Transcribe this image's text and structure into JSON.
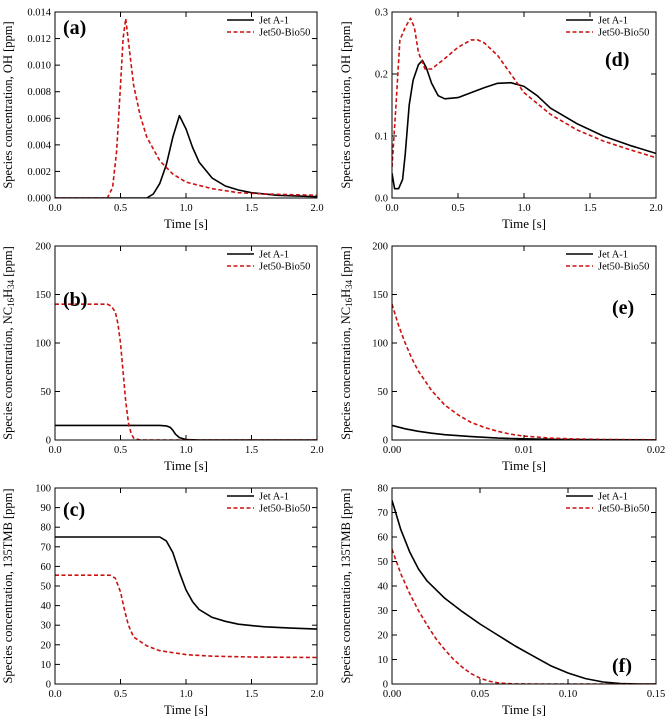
{
  "chart_data": [
    {
      "type": "line",
      "panel_label": "(a)",
      "xlabel": "Time [s]",
      "ylabel_parts": [
        {
          "text": "Species concentration, OH [ppm]"
        }
      ],
      "xlim": [
        0,
        2.0
      ],
      "ylim": [
        0,
        0.014
      ],
      "xticks": [
        {
          "v": 0,
          "label": "0.0"
        },
        {
          "v": 0.5,
          "label": "0.5"
        },
        {
          "v": 1.0,
          "label": "1.0"
        },
        {
          "v": 1.5,
          "label": "1.5"
        },
        {
          "v": 2.0,
          "label": "2.0"
        }
      ],
      "yticks": [
        {
          "v": 0,
          "label": "0.000"
        },
        {
          "v": 0.002,
          "label": "0.002"
        },
        {
          "v": 0.004,
          "label": "0.004"
        },
        {
          "v": 0.006,
          "label": "0.006"
        },
        {
          "v": 0.008,
          "label": "0.008"
        },
        {
          "v": 0.01,
          "label": "0.010"
        },
        {
          "v": 0.012,
          "label": "0.012"
        },
        {
          "v": 0.014,
          "label": "0.014"
        }
      ],
      "series": [
        {
          "name": "Jet A-1",
          "color": "#000000",
          "dash": "solid",
          "x": [
            0,
            0.7,
            0.75,
            0.8,
            0.85,
            0.9,
            0.95,
            1.0,
            1.05,
            1.1,
            1.2,
            1.3,
            1.4,
            1.5,
            1.7,
            2.0
          ],
          "y": [
            0,
            0,
            0.0003,
            0.0011,
            0.0025,
            0.0046,
            0.0062,
            0.0052,
            0.0038,
            0.0027,
            0.0015,
            0.0009,
            0.0006,
            0.0004,
            0.0002,
            0.0001
          ]
        },
        {
          "name": "Jet50-Bio50",
          "color": "#cc1111",
          "dash": "dashed",
          "x": [
            0,
            0.4,
            0.44,
            0.47,
            0.5,
            0.52,
            0.54,
            0.56,
            0.6,
            0.65,
            0.7,
            0.8,
            0.9,
            1.0,
            1.2,
            1.4,
            1.6,
            2.0
          ],
          "y": [
            0,
            0,
            0.0008,
            0.0035,
            0.0085,
            0.012,
            0.0135,
            0.0118,
            0.0085,
            0.0062,
            0.0046,
            0.0028,
            0.0018,
            0.0012,
            0.0007,
            0.0004,
            0.0003,
            0.0002
          ]
        }
      ]
    },
    {
      "type": "line",
      "panel_label": "(b)",
      "xlabel": "Time [s]",
      "ylabel_parts": [
        {
          "text": "Species concentration, NC"
        },
        {
          "text": "16",
          "sub": true
        },
        {
          "text": "H"
        },
        {
          "text": "34",
          "sub": true
        },
        {
          "text": " [ppm]"
        }
      ],
      "xlim": [
        0,
        2.0
      ],
      "ylim": [
        0,
        200
      ],
      "xticks": [
        {
          "v": 0,
          "label": "0.0"
        },
        {
          "v": 0.5,
          "label": "0.5"
        },
        {
          "v": 1.0,
          "label": "1.0"
        },
        {
          "v": 1.5,
          "label": "1.5"
        },
        {
          "v": 2.0,
          "label": "2.0"
        }
      ],
      "yticks": [
        {
          "v": 0,
          "label": "0"
        },
        {
          "v": 50,
          "label": "50"
        },
        {
          "v": 100,
          "label": "100"
        },
        {
          "v": 150,
          "label": "150"
        },
        {
          "v": 200,
          "label": "200"
        }
      ],
      "series": [
        {
          "name": "Jet A-1",
          "color": "#000000",
          "dash": "solid",
          "x": [
            0,
            0.8,
            0.85,
            0.88,
            0.9,
            0.92,
            0.95,
            1.0,
            1.1,
            2.0
          ],
          "y": [
            15,
            15,
            14.5,
            13,
            10,
            6,
            2.5,
            0.5,
            0,
            0
          ]
        },
        {
          "name": "Jet50-Bio50",
          "color": "#cc1111",
          "dash": "dashed",
          "x": [
            0,
            0.4,
            0.43,
            0.46,
            0.48,
            0.5,
            0.52,
            0.54,
            0.56,
            0.58,
            0.6,
            0.65,
            2.0
          ],
          "y": [
            140,
            140,
            138,
            132,
            120,
            100,
            70,
            40,
            18,
            7,
            2,
            0,
            0
          ]
        }
      ]
    },
    {
      "type": "line",
      "panel_label": "(c)",
      "xlabel": "Time [s]",
      "ylabel_parts": [
        {
          "text": "Species concentration, 135TMB [ppm]"
        }
      ],
      "xlim": [
        0,
        2.0
      ],
      "ylim": [
        0,
        100
      ],
      "xticks": [
        {
          "v": 0,
          "label": "0.0"
        },
        {
          "v": 0.5,
          "label": "0.5"
        },
        {
          "v": 1.0,
          "label": "1.0"
        },
        {
          "v": 1.5,
          "label": "1.5"
        },
        {
          "v": 2.0,
          "label": "2.0"
        }
      ],
      "yticks": [
        {
          "v": 0,
          "label": "0"
        },
        {
          "v": 10,
          "label": "10"
        },
        {
          "v": 20,
          "label": "20"
        },
        {
          "v": 30,
          "label": "30"
        },
        {
          "v": 40,
          "label": "40"
        },
        {
          "v": 50,
          "label": "50"
        },
        {
          "v": 60,
          "label": "60"
        },
        {
          "v": 70,
          "label": "70"
        },
        {
          "v": 80,
          "label": "80"
        },
        {
          "v": 90,
          "label": "90"
        },
        {
          "v": 100,
          "label": "100"
        }
      ],
      "series": [
        {
          "name": "Jet A-1",
          "color": "#000000",
          "dash": "solid",
          "x": [
            0,
            0.8,
            0.85,
            0.9,
            0.95,
            1.0,
            1.05,
            1.1,
            1.2,
            1.3,
            1.4,
            1.5,
            1.6,
            1.8,
            2.0
          ],
          "y": [
            75,
            75,
            73,
            67,
            57,
            48,
            42,
            38,
            34,
            32,
            30.5,
            29.8,
            29.2,
            28.5,
            28
          ]
        },
        {
          "name": "Jet50-Bio50",
          "color": "#cc1111",
          "dash": "dashed",
          "x": [
            0,
            0.42,
            0.46,
            0.5,
            0.53,
            0.56,
            0.6,
            0.7,
            0.8,
            1.0,
            1.2,
            1.5,
            2.0
          ],
          "y": [
            55.5,
            55.5,
            54,
            47,
            38,
            30,
            24,
            19.5,
            17,
            15,
            14.2,
            13.8,
            13.5
          ]
        }
      ]
    },
    {
      "type": "line",
      "panel_label": "(d)",
      "xlabel": "Time [s]",
      "ylabel_parts": [
        {
          "text": "Species concentration, OH [ppm]"
        }
      ],
      "xlim": [
        0,
        2.0
      ],
      "ylim": [
        0,
        0.3
      ],
      "xticks": [
        {
          "v": 0,
          "label": "0.0"
        },
        {
          "v": 0.5,
          "label": "0.5"
        },
        {
          "v": 1.0,
          "label": "1.0"
        },
        {
          "v": 1.5,
          "label": "1.5"
        },
        {
          "v": 2.0,
          "label": "2.0"
        }
      ],
      "yticks": [
        {
          "v": 0,
          "label": "0.0"
        },
        {
          "v": 0.1,
          "label": "0.1"
        },
        {
          "v": 0.2,
          "label": "0.2"
        },
        {
          "v": 0.3,
          "label": "0.3"
        }
      ],
      "series": [
        {
          "name": "Jet A-1",
          "color": "#000000",
          "dash": "solid",
          "x": [
            0,
            0.02,
            0.05,
            0.08,
            0.1,
            0.13,
            0.16,
            0.2,
            0.23,
            0.26,
            0.3,
            0.35,
            0.4,
            0.5,
            0.6,
            0.7,
            0.8,
            0.9,
            1.0,
            1.1,
            1.2,
            1.4,
            1.6,
            1.8,
            2.0
          ],
          "y": [
            0.04,
            0.015,
            0.015,
            0.03,
            0.07,
            0.15,
            0.19,
            0.215,
            0.222,
            0.21,
            0.185,
            0.165,
            0.16,
            0.162,
            0.17,
            0.178,
            0.185,
            0.186,
            0.18,
            0.165,
            0.145,
            0.12,
            0.1,
            0.085,
            0.072
          ]
        },
        {
          "name": "Jet50-Bio50",
          "color": "#cc1111",
          "dash": "dashed",
          "x": [
            0,
            0.03,
            0.06,
            0.1,
            0.14,
            0.17,
            0.2,
            0.25,
            0.3,
            0.4,
            0.5,
            0.6,
            0.65,
            0.7,
            0.8,
            0.9,
            1.0,
            1.2,
            1.4,
            1.6,
            1.8,
            2.0
          ],
          "y": [
            0.05,
            0.15,
            0.255,
            0.275,
            0.29,
            0.275,
            0.235,
            0.208,
            0.208,
            0.225,
            0.243,
            0.255,
            0.255,
            0.25,
            0.23,
            0.2,
            0.17,
            0.135,
            0.11,
            0.092,
            0.078,
            0.065
          ]
        }
      ]
    },
    {
      "type": "line",
      "panel_label": "(e)",
      "xlabel": "Time [s]",
      "ylabel_parts": [
        {
          "text": "Species concentration, NC"
        },
        {
          "text": "16",
          "sub": true
        },
        {
          "text": "H"
        },
        {
          "text": "34",
          "sub": true
        },
        {
          "text": " [ppm]"
        }
      ],
      "xlim": [
        0,
        0.02
      ],
      "ylim": [
        0,
        200
      ],
      "xticks": [
        {
          "v": 0,
          "label": "0.00"
        },
        {
          "v": 0.01,
          "label": "0.01"
        },
        {
          "v": 0.02,
          "label": "0.02"
        }
      ],
      "yticks": [
        {
          "v": 0,
          "label": "0"
        },
        {
          "v": 50,
          "label": "50"
        },
        {
          "v": 100,
          "label": "100"
        },
        {
          "v": 150,
          "label": "150"
        },
        {
          "v": 200,
          "label": "200"
        }
      ],
      "series": [
        {
          "name": "Jet A-1",
          "color": "#000000",
          "dash": "solid",
          "x": [
            0,
            0.001,
            0.002,
            0.003,
            0.004,
            0.006,
            0.008,
            0.01,
            0.012,
            0.015,
            0.02
          ],
          "y": [
            15,
            11.5,
            9,
            7,
            5.5,
            3.5,
            2,
            1.2,
            0.7,
            0.3,
            0.1
          ]
        },
        {
          "name": "Jet50-Bio50",
          "color": "#cc1111",
          "dash": "dashed",
          "x": [
            0,
            0.0005,
            0.001,
            0.0015,
            0.002,
            0.003,
            0.004,
            0.005,
            0.006,
            0.007,
            0.008,
            0.009,
            0.01,
            0.011,
            0.012,
            0.014,
            0.016,
            0.02
          ],
          "y": [
            140,
            118,
            100,
            84,
            71,
            51,
            36,
            26,
            18,
            13,
            9,
            6,
            4,
            3,
            2,
            1,
            0.5,
            0.2
          ]
        }
      ]
    },
    {
      "type": "line",
      "panel_label": "(f)",
      "xlabel": "Time [s]",
      "ylabel_parts": [
        {
          "text": "Species concentration, 135TMB [ppm]"
        }
      ],
      "xlim": [
        0,
        0.15
      ],
      "ylim": [
        0,
        80
      ],
      "xticks": [
        {
          "v": 0,
          "label": "0.00"
        },
        {
          "v": 0.05,
          "label": "0.05"
        },
        {
          "v": 0.1,
          "label": "0.10"
        },
        {
          "v": 0.15,
          "label": "0.15"
        }
      ],
      "yticks": [
        {
          "v": 0,
          "label": "0"
        },
        {
          "v": 10,
          "label": "10"
        },
        {
          "v": 20,
          "label": "20"
        },
        {
          "v": 30,
          "label": "30"
        },
        {
          "v": 40,
          "label": "40"
        },
        {
          "v": 50,
          "label": "50"
        },
        {
          "v": 60,
          "label": "60"
        },
        {
          "v": 70,
          "label": "70"
        },
        {
          "v": 80,
          "label": "80"
        }
      ],
      "series": [
        {
          "name": "Jet A-1",
          "color": "#000000",
          "dash": "solid",
          "x": [
            0,
            0.005,
            0.01,
            0.015,
            0.02,
            0.03,
            0.04,
            0.05,
            0.06,
            0.07,
            0.08,
            0.09,
            0.1,
            0.11,
            0.12,
            0.13,
            0.14,
            0.15
          ],
          "y": [
            75,
            63,
            54,
            47,
            42,
            35,
            29.5,
            24.5,
            20,
            15.5,
            11.5,
            7.5,
            4.5,
            2.2,
            0.8,
            0.2,
            0,
            0
          ]
        },
        {
          "name": "Jet50-Bio50",
          "color": "#cc1111",
          "dash": "dashed",
          "x": [
            0,
            0.005,
            0.01,
            0.015,
            0.02,
            0.025,
            0.03,
            0.035,
            0.04,
            0.045,
            0.05,
            0.055,
            0.06,
            0.065,
            0.07,
            0.08,
            0.15
          ],
          "y": [
            55,
            45,
            37,
            30,
            24,
            18.5,
            14,
            10,
            6.8,
            4.2,
            2.4,
            1.2,
            0.5,
            0.2,
            0.05,
            0,
            0
          ]
        }
      ]
    }
  ]
}
